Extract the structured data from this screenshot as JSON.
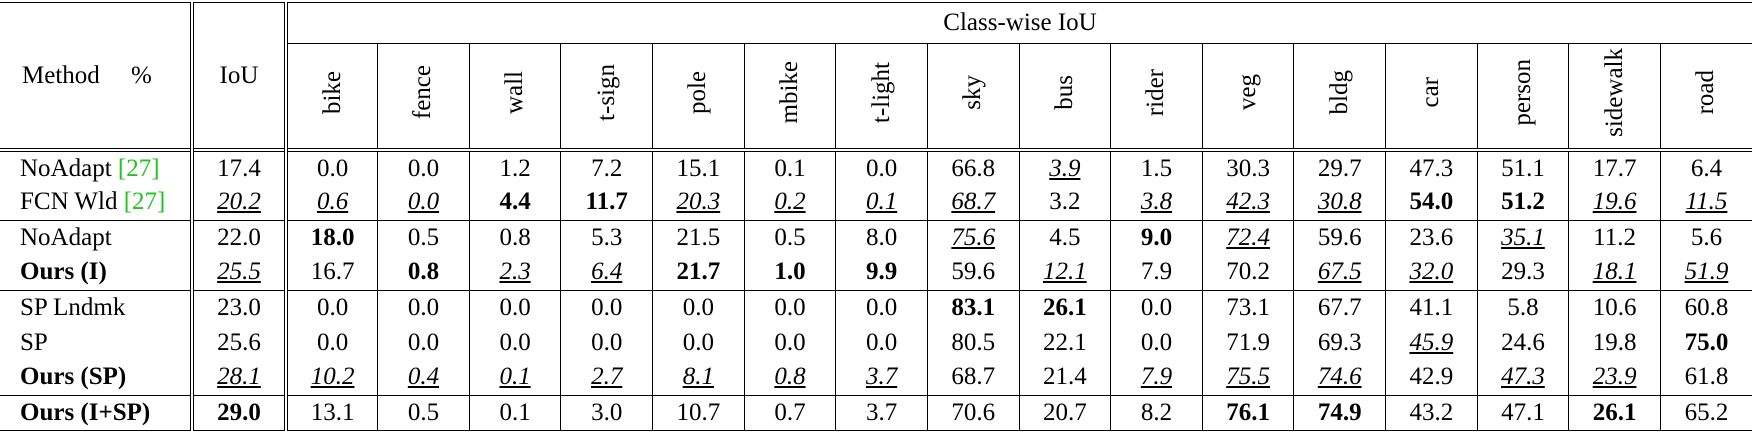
{
  "table": {
    "header": {
      "method": "Method",
      "unit": "%",
      "iou": "IoU",
      "class_wise": "Class-wise IoU",
      "columns": [
        "bike",
        "fence",
        "wall",
        "t-sign",
        "pole",
        "mbike",
        "t-light",
        "sky",
        "bus",
        "rider",
        "veg",
        "bldg",
        "car",
        "person",
        "sidewalk",
        "road"
      ]
    },
    "groups": [
      {
        "rows": [
          {
            "method": {
              "text": "NoAdapt",
              "cite": "[27]"
            },
            "iou": "17.4",
            "classes": [
              "0.0",
              "0.0",
              "1.2",
              "7.2",
              "15.1",
              "0.1",
              "0.0",
              "66.8",
              {
                "text": "3.9",
                "style": "underline"
              },
              "1.5",
              "30.3",
              "29.7",
              "47.3",
              "51.1",
              "17.7",
              "6.4"
            ]
          },
          {
            "method": {
              "text": "FCN Wld",
              "cite": "[27]"
            },
            "iou": {
              "text": "20.2",
              "style": "underline"
            },
            "classes": [
              {
                "text": "0.6",
                "style": "underline"
              },
              {
                "text": "0.0",
                "style": "underline"
              },
              {
                "text": "4.4",
                "style": "bold"
              },
              {
                "text": "11.7",
                "style": "bold"
              },
              {
                "text": "20.3",
                "style": "underline"
              },
              {
                "text": "0.2",
                "style": "underline"
              },
              {
                "text": "0.1",
                "style": "underline"
              },
              {
                "text": "68.7",
                "style": "underline"
              },
              "3.2",
              {
                "text": "3.8",
                "style": "underline"
              },
              {
                "text": "42.3",
                "style": "underline"
              },
              {
                "text": "30.8",
                "style": "underline"
              },
              {
                "text": "54.0",
                "style": "bold"
              },
              {
                "text": "51.2",
                "style": "bold"
              },
              {
                "text": "19.6",
                "style": "underline"
              },
              {
                "text": "11.5",
                "style": "underline"
              }
            ]
          }
        ]
      },
      {
        "rows": [
          {
            "method": {
              "text": "NoAdapt"
            },
            "iou": "22.0",
            "classes": [
              {
                "text": "18.0",
                "style": "bold"
              },
              "0.5",
              "0.8",
              "5.3",
              "21.5",
              "0.5",
              "8.0",
              {
                "text": "75.6",
                "style": "underline"
              },
              "4.5",
              {
                "text": "9.0",
                "style": "bold"
              },
              {
                "text": "72.4",
                "style": "underline"
              },
              "59.6",
              "23.6",
              {
                "text": "35.1",
                "style": "underline"
              },
              "11.2",
              "5.6"
            ]
          },
          {
            "method": {
              "text": "Ours (I)",
              "style": "bold"
            },
            "iou": {
              "text": "25.5",
              "style": "underline"
            },
            "classes": [
              "16.7",
              {
                "text": "0.8",
                "style": "bold"
              },
              {
                "text": "2.3",
                "style": "underline"
              },
              {
                "text": "6.4",
                "style": "underline"
              },
              {
                "text": "21.7",
                "style": "bold"
              },
              {
                "text": "1.0",
                "style": "bold"
              },
              {
                "text": "9.9",
                "style": "bold"
              },
              "59.6",
              {
                "text": "12.1",
                "style": "underline"
              },
              "7.9",
              "70.2",
              {
                "text": "67.5",
                "style": "underline"
              },
              {
                "text": "32.0",
                "style": "underline"
              },
              "29.3",
              {
                "text": "18.1",
                "style": "underline"
              },
              {
                "text": "51.9",
                "style": "underline"
              }
            ]
          }
        ]
      },
      {
        "rows": [
          {
            "method": {
              "text": "SP Lndmk"
            },
            "iou": "23.0",
            "classes": [
              "0.0",
              "0.0",
              "0.0",
              "0.0",
              "0.0",
              "0.0",
              "0.0",
              {
                "text": "83.1",
                "style": "bold"
              },
              {
                "text": "26.1",
                "style": "bold"
              },
              "0.0",
              "73.1",
              "67.7",
              "41.1",
              "5.8",
              "10.6",
              "60.8"
            ]
          },
          {
            "method": {
              "text": "SP"
            },
            "iou": "25.6",
            "classes": [
              "0.0",
              "0.0",
              "0.0",
              "0.0",
              "0.0",
              "0.0",
              "0.0",
              "80.5",
              "22.1",
              "0.0",
              "71.9",
              "69.3",
              {
                "text": "45.9",
                "style": "underline"
              },
              "24.6",
              "19.8",
              {
                "text": "75.0",
                "style": "bold"
              }
            ]
          },
          {
            "method": {
              "text": "Ours (SP)",
              "style": "bold"
            },
            "iou": {
              "text": "28.1",
              "style": "underline"
            },
            "classes": [
              {
                "text": "10.2",
                "style": "underline"
              },
              {
                "text": "0.4",
                "style": "underline"
              },
              {
                "text": "0.1",
                "style": "underline"
              },
              {
                "text": "2.7",
                "style": "underline"
              },
              {
                "text": "8.1",
                "style": "underline"
              },
              {
                "text": "0.8",
                "style": "underline"
              },
              {
                "text": "3.7",
                "style": "underline"
              },
              "68.7",
              "21.4",
              {
                "text": "7.9",
                "style": "underline"
              },
              {
                "text": "75.5",
                "style": "underline"
              },
              {
                "text": "74.6",
                "style": "underline"
              },
              "42.9",
              {
                "text": "47.3",
                "style": "underline"
              },
              {
                "text": "23.9",
                "style": "underline"
              },
              "61.8"
            ]
          }
        ]
      },
      {
        "rows": [
          {
            "method": {
              "text": "Ours (I+SP)",
              "style": "bold"
            },
            "iou": {
              "text": "29.0",
              "style": "bold"
            },
            "classes": [
              "13.1",
              "0.5",
              "0.1",
              "3.0",
              "10.7",
              "0.7",
              "3.7",
              "70.6",
              "20.7",
              "8.2",
              {
                "text": "76.1",
                "style": "bold"
              },
              {
                "text": "74.9",
                "style": "bold"
              },
              "43.2",
              "47.1",
              {
                "text": "26.1",
                "style": "bold"
              },
              "65.2"
            ]
          }
        ]
      }
    ]
  }
}
